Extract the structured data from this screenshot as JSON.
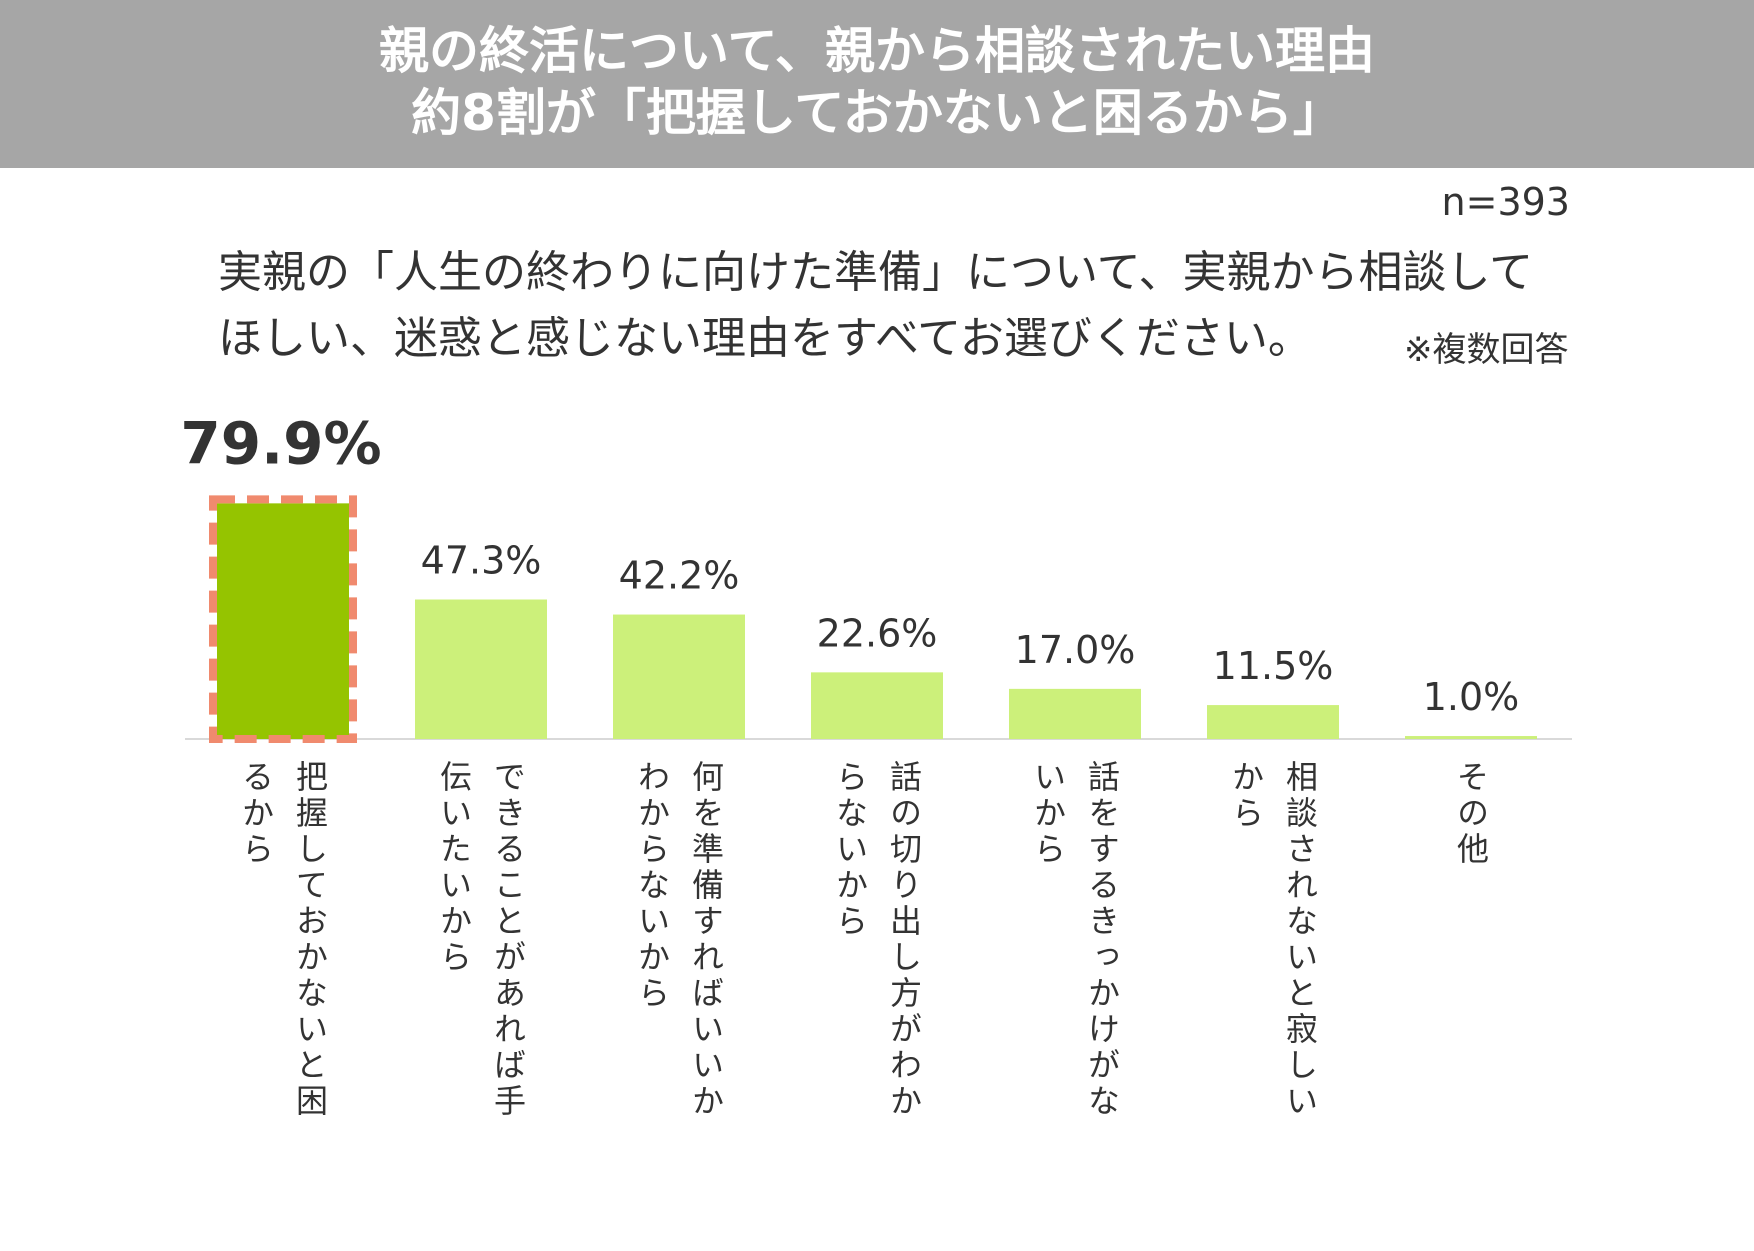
{
  "header": {
    "line1": "親の終活について、親から相談されたい理由",
    "line2": "約8割が「把握しておかないと困るから」"
  },
  "sample_size": "n=393",
  "question": {
    "line1": "実親の「人生の終わりに向けた準備」について、実親から相談して",
    "line2": "ほしい、迷惑と感じない理由をすべてお選びください。"
  },
  "note": "※複数回答",
  "colors": {
    "header_bg": "#a6a6a6",
    "highlight_bar": "#95c400",
    "bar": "#ccf07a",
    "highlight_border": "#f08a6e",
    "axis": "#d9d9d9"
  },
  "chart_data": {
    "type": "bar",
    "categories": [
      [
        "把握しておかないと困",
        "るから"
      ],
      [
        "できることがあれば手",
        "伝いたいから"
      ],
      [
        "何を準備すればいいか",
        "わからないから"
      ],
      [
        "話の切り出し方がわか",
        "らないから"
      ],
      [
        "話をするきっかけがな",
        "いから"
      ],
      [
        "相談されないと寂しい",
        "から"
      ],
      [
        "その他"
      ]
    ],
    "values": [
      79.9,
      47.3,
      42.2,
      22.6,
      17.0,
      11.5,
      1.0
    ],
    "value_labels": [
      "79.9%",
      "47.3%",
      "42.2%",
      "22.6%",
      "17.0%",
      "11.5%",
      "1.0%"
    ],
    "unit": "%",
    "highlight_index": 0,
    "ylim": [
      0,
      80
    ],
    "grid": false,
    "legend": "none"
  }
}
